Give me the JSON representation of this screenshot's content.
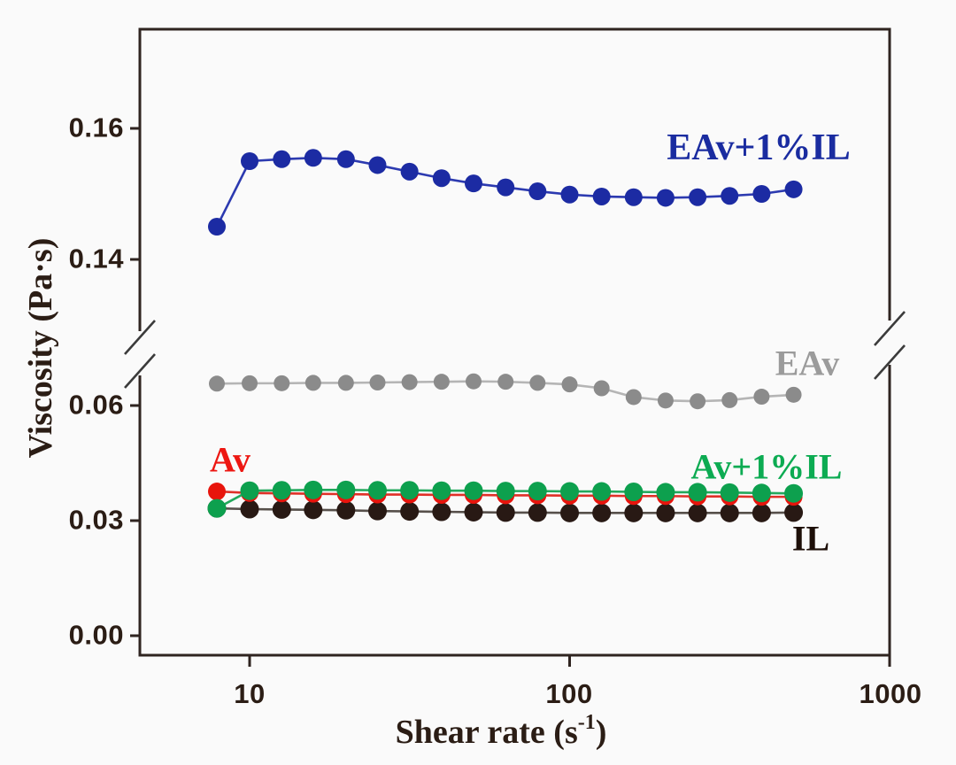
{
  "figure": {
    "background": "#fafafa",
    "frame_color": "#2f2420",
    "text_color": "#2b1d15",
    "break_mark_color": "#3b3b3b"
  },
  "chart_data": {
    "type": "line",
    "title": "",
    "xlabel": "Shear rate (s⁻¹)",
    "xlabel_prefix": "Shear rate (s",
    "xlabel_sup": "-1",
    "xlabel_suffix": ")",
    "ylabel": "Viscosity (Pa·s)",
    "x_scale": "log",
    "xlim": [
      4.5,
      1000
    ],
    "ylim_bottom_segment": [
      0.0,
      0.072
    ],
    "ylim_top_segment": [
      0.131,
      0.175
    ],
    "y_axis_break": [
      0.072,
      0.131
    ],
    "grid": "off",
    "legend": "inline-labels",
    "x_tick_values": [
      10,
      100,
      1000
    ],
    "x_tick_labels": [
      "10",
      "100",
      "1000"
    ],
    "y_tick_values": [
      0.0,
      0.03,
      0.06,
      0.14,
      0.16
    ],
    "y_tick_labels": [
      "0.00",
      "0.03",
      "0.06",
      "0.14",
      "0.16"
    ],
    "x": [
      7.9,
      10,
      12.6,
      15.8,
      20,
      25.1,
      31.6,
      39.8,
      50.1,
      63.1,
      79.4,
      100,
      125.9,
      158.5,
      199.5,
      251.2,
      316.2,
      398.1,
      501.2
    ],
    "series": [
      {
        "name": "IL",
        "color": "#281914",
        "line_color": "#57504b",
        "label_color": "#1d0f08",
        "dot_radius": 10.5,
        "values": [
          0.0332,
          0.033,
          0.0329,
          0.0328,
          0.0327,
          0.0325,
          0.0324,
          0.0323,
          0.0322,
          0.0321,
          0.0321,
          0.032,
          0.032,
          0.032,
          0.032,
          0.032,
          0.032,
          0.032,
          0.0321
        ]
      },
      {
        "name": "Av",
        "color": "#e8140c",
        "line_color": "#e03028",
        "label_color": "#ed1712",
        "dot_radius": 10,
        "values": [
          0.0376,
          0.0372,
          0.0371,
          0.037,
          0.0369,
          0.0368,
          0.0368,
          0.0367,
          0.0367,
          0.0366,
          0.0366,
          0.0365,
          0.0365,
          0.0364,
          0.0364,
          0.0363,
          0.0363,
          0.0362,
          0.0362
        ]
      },
      {
        "name": "Av+1%IL",
        "color": "#0da04e",
        "line_color": "#23a85c",
        "label_color": "#0cab52",
        "dot_radius": 10.5,
        "values": [
          0.0332,
          0.0378,
          0.0379,
          0.038,
          0.038,
          0.0379,
          0.0379,
          0.0378,
          0.0378,
          0.0377,
          0.0377,
          0.0376,
          0.0376,
          0.0375,
          0.0374,
          0.0374,
          0.0373,
          0.0372,
          0.0371
        ]
      },
      {
        "name": "EAv",
        "color": "#8b8b8b",
        "line_color": "#b5b5b5",
        "label_color": "#9b9b9b",
        "dot_radius": 9,
        "values": [
          0.0657,
          0.0658,
          0.0658,
          0.0659,
          0.0659,
          0.066,
          0.0661,
          0.0662,
          0.0663,
          0.0662,
          0.0659,
          0.0655,
          0.0645,
          0.0622,
          0.0613,
          0.0611,
          0.0614,
          0.0623,
          0.0628
        ]
      },
      {
        "name": "EAv+1%IL",
        "color": "#1c2ba3",
        "line_color": "#2c3ab0",
        "label_color": "#1a2ca0",
        "dot_radius": 10,
        "values": [
          0.145,
          0.155,
          0.1553,
          0.1555,
          0.1553,
          0.1544,
          0.1534,
          0.1524,
          0.1516,
          0.151,
          0.1504,
          0.1499,
          0.1496,
          0.1495,
          0.1494,
          0.1495,
          0.1497,
          0.15,
          0.1507
        ]
      }
    ]
  }
}
